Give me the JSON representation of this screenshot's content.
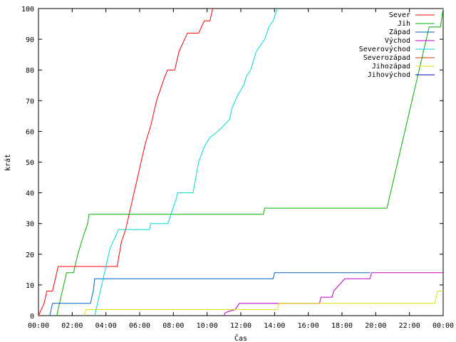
{
  "chart_data": {
    "type": "line",
    "title": "",
    "xlabel": "Čas",
    "ylabel": "krát",
    "xlim": [
      "00:00",
      "24:00"
    ],
    "ylim": [
      0,
      100
    ],
    "x_ticks": [
      "00:00",
      "02:00",
      "04:00",
      "06:00",
      "08:00",
      "10:00",
      "12:00",
      "14:00",
      "16:00",
      "18:00",
      "20:00",
      "22:00",
      "00:00"
    ],
    "y_ticks": [
      0,
      10,
      20,
      30,
      40,
      50,
      60,
      70,
      80,
      90,
      100
    ],
    "grid": false,
    "legend_position": "top-right",
    "series": [
      {
        "name": "Sever",
        "color": "#ff0000",
        "points": [
          [
            "00:00",
            0
          ],
          [
            "00:20",
            4
          ],
          [
            "00:30",
            8
          ],
          [
            "00:50",
            8
          ],
          [
            "01:00",
            12
          ],
          [
            "01:10",
            16
          ],
          [
            "04:40",
            16
          ],
          [
            "04:55",
            24
          ],
          [
            "05:10",
            28
          ],
          [
            "05:30",
            36
          ],
          [
            "06:00",
            48
          ],
          [
            "06:20",
            56
          ],
          [
            "06:40",
            62
          ],
          [
            "07:00",
            70
          ],
          [
            "07:30",
            78
          ],
          [
            "07:40",
            80
          ],
          [
            "08:05",
            80
          ],
          [
            "08:20",
            86
          ],
          [
            "08:40",
            90
          ],
          [
            "08:50",
            92
          ],
          [
            "09:30",
            92
          ],
          [
            "09:40",
            94
          ],
          [
            "09:50",
            96
          ],
          [
            "10:10",
            96
          ],
          [
            "10:20",
            100
          ]
        ]
      },
      {
        "name": "Jih",
        "color": "#00b000",
        "points": [
          [
            "01:05",
            0
          ],
          [
            "01:30",
            10
          ],
          [
            "01:40",
            14
          ],
          [
            "02:05",
            14
          ],
          [
            "02:20",
            20
          ],
          [
            "02:40",
            26
          ],
          [
            "02:55",
            30
          ],
          [
            "03:00",
            33
          ],
          [
            "13:20",
            33
          ],
          [
            "13:25",
            35
          ],
          [
            "20:40",
            35
          ],
          [
            "23:10",
            94
          ],
          [
            "23:50",
            94
          ],
          [
            "24:00",
            100
          ]
        ]
      },
      {
        "name": "Západ",
        "color": "#0060c0",
        "points": [
          [
            "00:40",
            0
          ],
          [
            "00:45",
            2
          ],
          [
            "00:50",
            4
          ],
          [
            "03:05",
            4
          ],
          [
            "03:15",
            8
          ],
          [
            "03:20",
            12
          ],
          [
            "13:55",
            12
          ],
          [
            "14:00",
            14
          ],
          [
            "19:40",
            14
          ]
        ]
      },
      {
        "name": "Východ",
        "color": "#c000c0",
        "points": [
          [
            "11:00",
            0
          ],
          [
            "11:05",
            1
          ],
          [
            "11:40",
            2
          ],
          [
            "11:55",
            4
          ],
          [
            "16:40",
            4
          ],
          [
            "16:45",
            6
          ],
          [
            "17:25",
            6
          ],
          [
            "17:30",
            8
          ],
          [
            "17:50",
            10
          ],
          [
            "18:10",
            12
          ],
          [
            "19:40",
            12
          ],
          [
            "19:45",
            14
          ],
          [
            "24:00",
            14
          ]
        ]
      },
      {
        "name": "Severovýchod",
        "color": "#00d8d8",
        "points": [
          [
            "03:20",
            0
          ],
          [
            "03:40",
            8
          ],
          [
            "04:15",
            22
          ],
          [
            "04:45",
            28
          ],
          [
            "06:35",
            28
          ],
          [
            "06:40",
            30
          ],
          [
            "07:40",
            30
          ],
          [
            "08:10",
            38
          ],
          [
            "08:15",
            40
          ],
          [
            "09:10",
            40
          ],
          [
            "09:30",
            50
          ],
          [
            "09:50",
            55
          ],
          [
            "10:10",
            58
          ],
          [
            "10:25",
            59
          ],
          [
            "10:50",
            61
          ],
          [
            "11:10",
            63
          ],
          [
            "11:20",
            64
          ],
          [
            "11:30",
            68
          ],
          [
            "11:50",
            72
          ],
          [
            "12:10",
            75
          ],
          [
            "12:20",
            78
          ],
          [
            "12:35",
            80
          ],
          [
            "12:55",
            86
          ],
          [
            "13:10",
            88
          ],
          [
            "13:25",
            90
          ],
          [
            "13:40",
            94
          ],
          [
            "13:55",
            96
          ],
          [
            "14:10",
            100
          ]
        ]
      },
      {
        "name": "Severozápad",
        "color": "#c04000",
        "points": []
      },
      {
        "name": "Jihozápad",
        "color": "#e0e000",
        "points": [
          [
            "02:40",
            0
          ],
          [
            "02:50",
            2
          ],
          [
            "14:10",
            2
          ],
          [
            "14:15",
            4
          ],
          [
            "23:30",
            4
          ],
          [
            "23:40",
            8
          ],
          [
            "24:00",
            8
          ]
        ]
      },
      {
        "name": "Jihovýchod",
        "color": "#0000c0",
        "points": []
      }
    ]
  }
}
